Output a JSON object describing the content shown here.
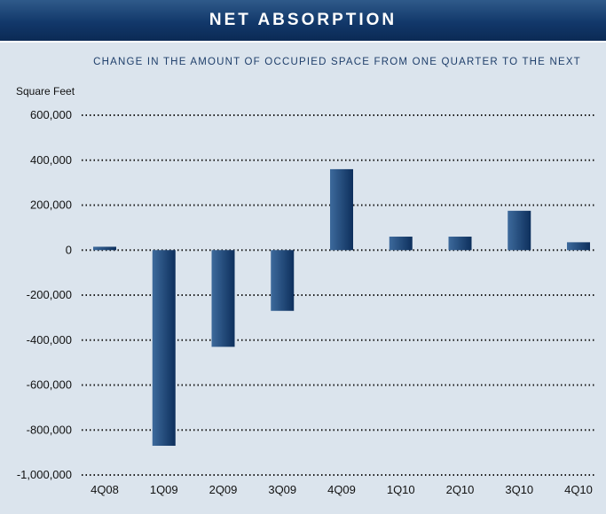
{
  "header": {
    "title": "NET ABSORPTION"
  },
  "chart_data": {
    "type": "bar",
    "title": "NET ABSORPTION",
    "subtitle": "CHANGE IN THE AMOUNT OF OCCUPIED SPACE FROM ONE QUARTER TO THE NEXT",
    "ylabel": "Square Feet",
    "xlabel": "",
    "categories": [
      "4Q08",
      "1Q09",
      "2Q09",
      "3Q09",
      "4Q09",
      "1Q10",
      "2Q10",
      "3Q10",
      "4Q10"
    ],
    "values": [
      15000,
      -870000,
      -430000,
      -270000,
      360000,
      60000,
      60000,
      175000,
      35000
    ],
    "ylim": [
      -1000000,
      600000
    ],
    "yticks": [
      600000,
      400000,
      200000,
      0,
      -200000,
      -400000,
      -600000,
      -800000,
      -1000000
    ],
    "ytick_labels": [
      "600,000",
      "400,000",
      "200,000",
      "0",
      "-200,000",
      "-400,000",
      "-600,000",
      "-800,000",
      "-1,000,000"
    ],
    "grid": true,
    "grid_style": "dotted",
    "bar_color_light": "#3d6a9c",
    "bar_color_dark": "#0d2f5c"
  }
}
